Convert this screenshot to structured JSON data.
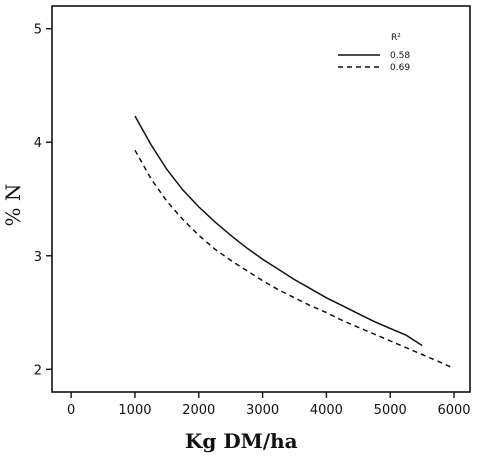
{
  "chart_data": {
    "type": "line",
    "title": "",
    "xlabel": "Kg DM/ha",
    "ylabel": "% N",
    "xlim": [
      -300,
      6250
    ],
    "ylim": [
      1.8,
      5.2
    ],
    "xticks": [
      0,
      1000,
      2000,
      3000,
      4000,
      5000,
      6000
    ],
    "yticks": [
      2,
      3,
      4,
      5
    ],
    "grid": false,
    "legend": {
      "title": "R²",
      "placement": "top-right",
      "entries": [
        "0.58",
        "0.69"
      ]
    },
    "series": [
      {
        "name": "0.58",
        "style": "solid",
        "color": "#111111",
        "x": [
          1000,
          1250,
          1500,
          1750,
          2000,
          2250,
          2500,
          2750,
          3000,
          3250,
          3500,
          3750,
          4000,
          4250,
          4500,
          4750,
          5000,
          5250,
          5500
        ],
        "y": [
          4.23,
          3.98,
          3.76,
          3.58,
          3.43,
          3.3,
          3.18,
          3.07,
          2.97,
          2.88,
          2.79,
          2.71,
          2.63,
          2.56,
          2.49,
          2.42,
          2.36,
          2.3,
          2.21
        ]
      },
      {
        "name": "0.69",
        "style": "dashed",
        "color": "#111111",
        "x": [
          1000,
          1250,
          1500,
          1750,
          2000,
          2250,
          2500,
          2750,
          3000,
          3250,
          3500,
          3750,
          4000,
          4250,
          4500,
          4750,
          5000,
          5250,
          5500,
          5750,
          5950
        ],
        "y": [
          3.93,
          3.68,
          3.48,
          3.32,
          3.18,
          3.06,
          2.96,
          2.87,
          2.78,
          2.7,
          2.63,
          2.56,
          2.5,
          2.43,
          2.37,
          2.31,
          2.25,
          2.19,
          2.13,
          2.07,
          2.02
        ]
      }
    ]
  }
}
